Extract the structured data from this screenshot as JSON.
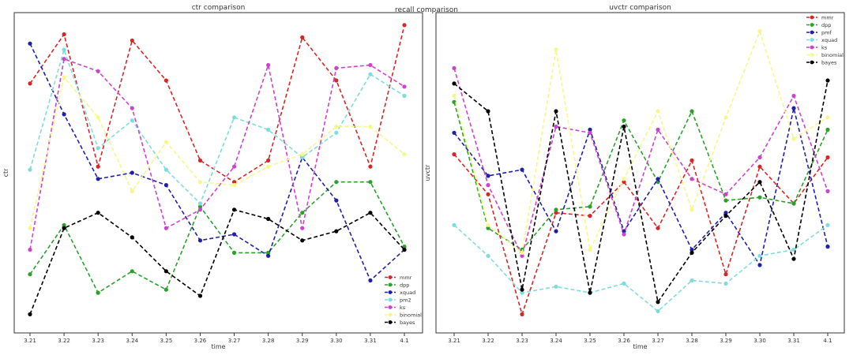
{
  "suptitle": "recall comparison",
  "colors": {
    "mmr": "#d62728",
    "dpp": "#2ca02c",
    "pmf": "#1f1fa8",
    "xquad": "#1f1fa8",
    "pm2": "#7fdcdc",
    "ks": "#cc44cc",
    "binomial": "#f7f78a",
    "bayes": "#000000"
  },
  "chart_data": [
    {
      "type": "line",
      "title": "ctr comparison",
      "xlabel": "time",
      "ylabel": "ctr",
      "categories": [
        "3.21",
        "3.22",
        "3.23",
        "3.24",
        "3.25",
        "3.26",
        "3.27",
        "3.28",
        "3.29",
        "3.30",
        "3.31",
        "4.1"
      ],
      "ylim": [
        0,
        100
      ],
      "grid": false,
      "legend_position": "lower-right",
      "legend": [
        "mmr",
        "dpp",
        "xquad",
        "pm2",
        "ks",
        "binomial",
        "bayes"
      ],
      "series": [
        {
          "name": "mmr",
          "color": "#d62728",
          "values": [
            79,
            95,
            52,
            93,
            80,
            54,
            47,
            54,
            94,
            80,
            52,
            98
          ]
        },
        {
          "name": "dpp",
          "color": "#2ca02c",
          "values": [
            17,
            33,
            11,
            18,
            12,
            39,
            24,
            24,
            37,
            47,
            47,
            26
          ]
        },
        {
          "name": "xquad",
          "color": "#1f1fa8",
          "values": [
            92,
            69,
            48,
            50,
            46,
            28,
            30,
            23,
            55,
            41,
            15,
            25
          ]
        },
        {
          "name": "pm2",
          "color": "#7fdcdc",
          "values": [
            51,
            90,
            58,
            67,
            51,
            40,
            68,
            64,
            55,
            63,
            82,
            75
          ]
        },
        {
          "name": "ks",
          "color": "#cc44cc",
          "values": [
            25,
            87,
            83,
            71,
            32,
            38,
            52,
            85,
            32,
            84,
            85,
            78
          ]
        },
        {
          "name": "binomial",
          "color": "#f7f78a",
          "values": [
            32,
            81,
            68,
            44,
            60,
            47,
            46,
            52,
            56,
            65,
            65,
            56
          ]
        },
        {
          "name": "bayes",
          "color": "#000000",
          "values": [
            4,
            32,
            37,
            29,
            18,
            10,
            38,
            35,
            28,
            31,
            37,
            25
          ]
        }
      ]
    },
    {
      "type": "line",
      "title": "uvctr comparison",
      "xlabel": "time",
      "ylabel": "uvctr",
      "categories": [
        "3.21",
        "3.22",
        "3.23",
        "3.24",
        "3.25",
        "3.26",
        "3.27",
        "3.28",
        "3.29",
        "3.30",
        "3.31",
        "4.1"
      ],
      "ylim": [
        0,
        100
      ],
      "grid": false,
      "legend_position": "upper-right",
      "legend": [
        "mmr",
        "dpp",
        "pmf",
        "xquad",
        "ks",
        "binomial",
        "bayes"
      ],
      "series": [
        {
          "name": "mmr",
          "color": "#d62728",
          "values": [
            56,
            43,
            4,
            37,
            36,
            47,
            32,
            54,
            17,
            52,
            40,
            55
          ]
        },
        {
          "name": "dpp",
          "color": "#2ca02c",
          "values": [
            73,
            32,
            25,
            38,
            39,
            67,
            47,
            70,
            41,
            42,
            40,
            64
          ]
        },
        {
          "name": "pmf",
          "color": "#1f1fa8",
          "values": [
            63,
            49,
            51,
            31,
            64,
            31,
            48,
            25,
            37,
            20,
            71,
            26
          ]
        },
        {
          "name": "xquad",
          "color": "#7fdcdc",
          "values": [
            33,
            23,
            11,
            13,
            11,
            14,
            5,
            15,
            14,
            23,
            25,
            33
          ]
        },
        {
          "name": "ks",
          "color": "#cc44cc",
          "values": [
            84,
            46,
            23,
            65,
            63,
            30,
            64,
            48,
            43,
            55,
            75,
            44
          ]
        },
        {
          "name": "binomial",
          "color": "#f7f78a",
          "values": [
            75,
            33,
            24,
            90,
            25,
            48,
            70,
            38,
            68,
            96,
            61,
            68
          ]
        },
        {
          "name": "bayes",
          "color": "#000000",
          "values": [
            79,
            70,
            12,
            70,
            11,
            65,
            8,
            24,
            36,
            47,
            22,
            80
          ]
        }
      ]
    }
  ]
}
